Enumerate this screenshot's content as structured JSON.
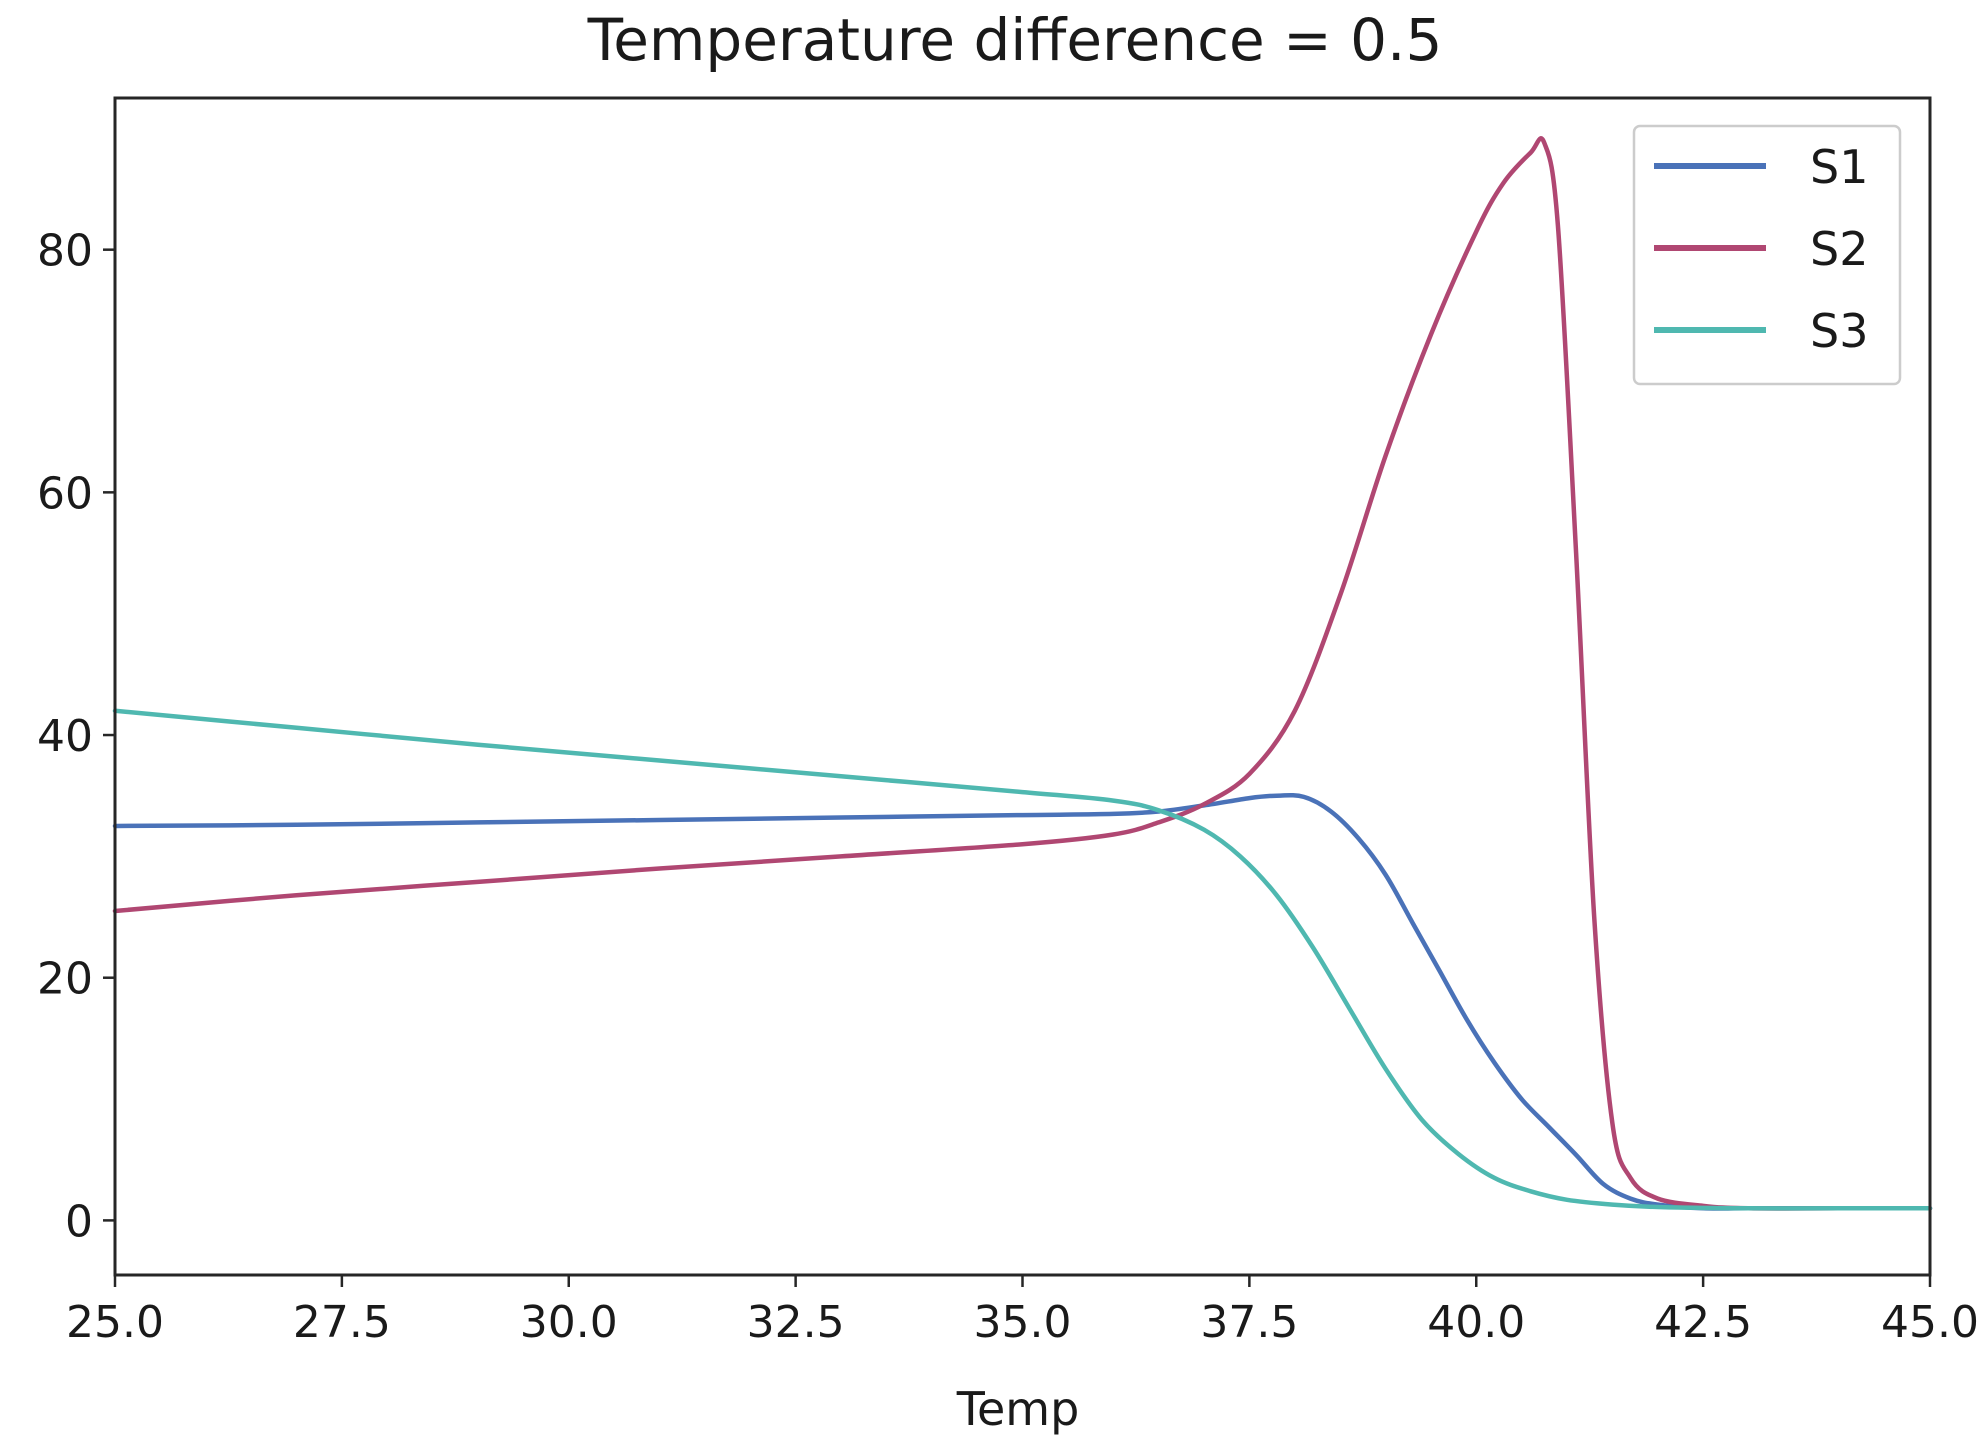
{
  "chart_data": {
    "type": "line",
    "title": "Temperature difference = 0.5",
    "xlabel": "Temp",
    "ylabel": "",
    "xlim": [
      25.0,
      45.0
    ],
    "ylim": [
      -4.5,
      92.5
    ],
    "xticks": [
      25.0,
      27.5,
      30.0,
      32.5,
      35.0,
      37.5,
      40.0,
      42.5,
      45.0
    ],
    "xtick_labels": [
      "25.0",
      "27.5",
      "30.0",
      "32.5",
      "35.0",
      "37.5",
      "40.0",
      "42.5",
      "45.0"
    ],
    "yticks": [
      0,
      20,
      40,
      60,
      80
    ],
    "ytick_labels": [
      "0",
      "20",
      "40",
      "60",
      "80"
    ],
    "grid": false,
    "legend_position": "top-right",
    "series": [
      {
        "name": "S1",
        "color": "#4a72b8",
        "x": [
          25,
          27,
          29,
          31,
          33,
          35,
          36,
          36.5,
          37,
          37.5,
          37.8,
          38.1,
          38.4,
          38.7,
          39,
          39.3,
          39.6,
          39.9,
          40.2,
          40.5,
          40.8,
          41.1,
          41.4,
          41.7,
          42,
          42.5,
          43,
          44,
          45
        ],
        "values": [
          32.5,
          32.6,
          32.8,
          33.0,
          33.2,
          33.4,
          33.5,
          33.7,
          34.2,
          34.8,
          35.0,
          34.9,
          33.7,
          31.5,
          28.5,
          24.5,
          20.5,
          16.5,
          13.0,
          10.0,
          7.7,
          5.4,
          3.0,
          1.8,
          1.3,
          1.0,
          1.0,
          1.0,
          1.0
        ]
      },
      {
        "name": "S2",
        "color": "#b04772",
        "x": [
          25,
          27,
          29,
          31,
          33,
          35,
          36,
          36.5,
          37,
          37.5,
          38,
          38.5,
          39,
          39.5,
          40,
          40.3,
          40.6,
          40.75,
          40.9,
          41.1,
          41.3,
          41.5,
          41.7,
          42,
          42.5,
          43,
          44,
          45
        ],
        "values": [
          25.5,
          26.8,
          27.9,
          29.0,
          30.0,
          31.0,
          31.8,
          32.8,
          34.3,
          36.8,
          42.0,
          51.5,
          63.0,
          73.0,
          81.5,
          85.5,
          88.0,
          88.8,
          82.0,
          55.0,
          25.0,
          8.0,
          3.5,
          1.8,
          1.2,
          1.0,
          1.0,
          1.0
        ]
      },
      {
        "name": "S3",
        "color": "#4fb8b0",
        "x": [
          25,
          27,
          29,
          31,
          33,
          35,
          36,
          36.5,
          37,
          37.4,
          37.8,
          38.2,
          38.6,
          39,
          39.4,
          39.8,
          40.2,
          40.6,
          41,
          41.5,
          42,
          43,
          44,
          45
        ],
        "values": [
          42.0,
          40.6,
          39.2,
          37.9,
          36.6,
          35.3,
          34.6,
          33.8,
          32.2,
          30.0,
          26.8,
          22.5,
          17.5,
          12.5,
          8.3,
          5.5,
          3.5,
          2.4,
          1.7,
          1.3,
          1.1,
          1.0,
          1.0,
          1.0
        ]
      }
    ]
  }
}
